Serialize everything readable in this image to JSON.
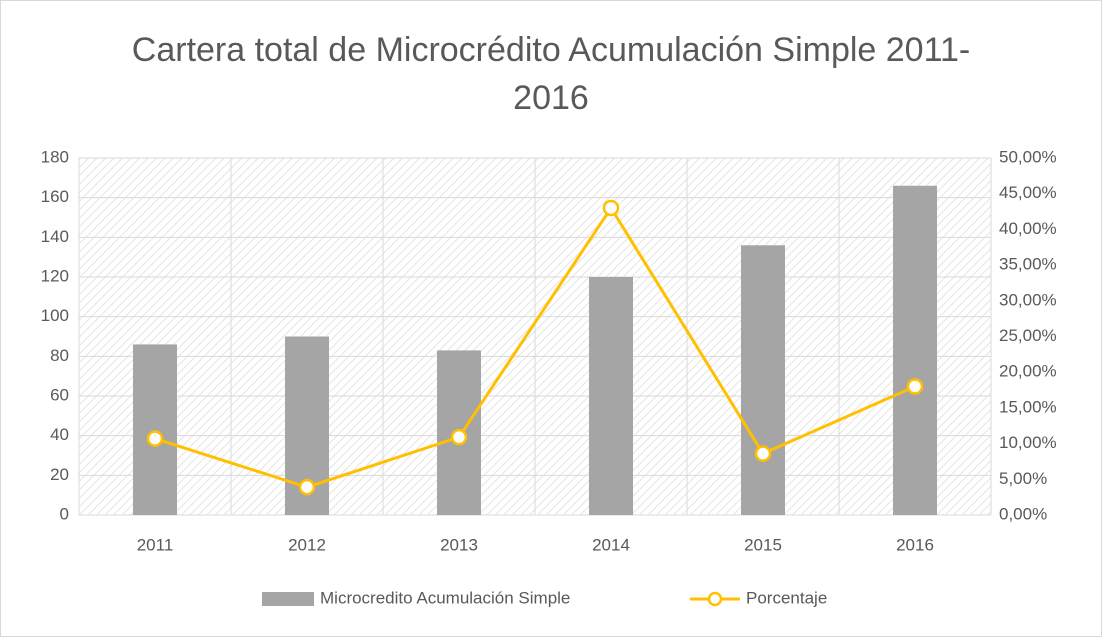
{
  "chart_data": {
    "type": "bar_line",
    "title": "Cartera total de Microcrédito Acumulación Simple 2011-2016",
    "categories": [
      "2011",
      "2012",
      "2013",
      "2014",
      "2015",
      "2016"
    ],
    "series": [
      {
        "name": "Microcredito Acumulación Simple",
        "color": "#a5a5a5",
        "type": "bar",
        "values": [
          86,
          90,
          83,
          120,
          136,
          166
        ]
      },
      {
        "name": "Porcentaje",
        "color": "#ffc000",
        "type": "line",
        "axis": "y2",
        "values": [
          10.7,
          3.9,
          10.9,
          43.0,
          8.6,
          18.0
        ]
      }
    ],
    "ylim": [
      0,
      180
    ],
    "yticks": [
      0,
      20,
      40,
      60,
      80,
      100,
      120,
      140,
      160,
      180
    ],
    "y2lim": [
      0,
      50
    ],
    "y2ticks": [
      {
        "value": 0,
        "label": "0,00%"
      },
      {
        "value": 5,
        "label": "5,00%"
      },
      {
        "value": 10,
        "label": "10,00%"
      },
      {
        "value": 15,
        "label": "15,00%"
      },
      {
        "value": 20,
        "label": "20,00%"
      },
      {
        "value": 25,
        "label": "25,00%"
      },
      {
        "value": 30,
        "label": "30,00%"
      },
      {
        "value": 35,
        "label": "35,00%"
      },
      {
        "value": 40,
        "label": "40,00%"
      },
      {
        "value": 45,
        "label": "45,00%"
      },
      {
        "value": 50,
        "label": "50,00%"
      }
    ],
    "grid": true,
    "legend": "bottom"
  }
}
